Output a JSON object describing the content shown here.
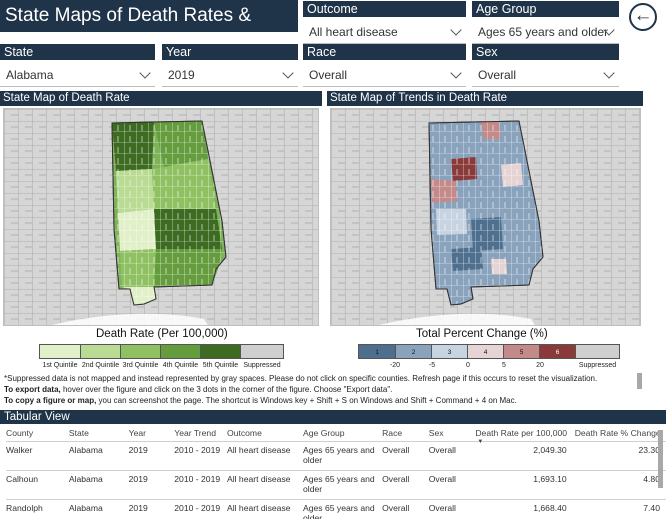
{
  "header": {
    "title": "State Maps of Death Rates & Trends"
  },
  "filters": {
    "outcome": {
      "label": "Outcome",
      "value": "All heart disease"
    },
    "age_group": {
      "label": "Age Group",
      "value": "Ages 65 years and older"
    },
    "state": {
      "label": "State",
      "value": "Alabama"
    },
    "year": {
      "label": "Year",
      "value": "2019"
    },
    "race": {
      "label": "Race",
      "value": "Overall"
    },
    "sex": {
      "label": "Sex",
      "value": "Overall"
    }
  },
  "back_button": {
    "icon": "arrow-left-circle-icon"
  },
  "death_rate_map": {
    "title": "State Map of Death Rate",
    "legend_title": "Death Rate (Per 100,000)",
    "legend": [
      {
        "label": "1st Quintile",
        "color": "#e2f0c9"
      },
      {
        "label": "2nd Quintile",
        "color": "#b9db93"
      },
      {
        "label": "3rd Quintile",
        "color": "#8fc163"
      },
      {
        "label": "4th Quintile",
        "color": "#659c3e"
      },
      {
        "label": "5th Quintile",
        "color": "#3d6b22"
      },
      {
        "label": "Suppressed",
        "color": "#cfcfcf"
      }
    ]
  },
  "trend_map": {
    "title": "State Map of Trends in Death Rate",
    "legend_title": "Total Percent Change (%)",
    "legend": [
      {
        "label": "1",
        "color": "#4f6f8f"
      },
      {
        "label": "2",
        "color": "#8aa3bd"
      },
      {
        "label": "3",
        "color": "#c7d3e0"
      },
      {
        "label": "4",
        "color": "#e6d3d3"
      },
      {
        "label": "5",
        "color": "#c48a8a"
      },
      {
        "label": "6",
        "color": "#8b3a3a"
      },
      {
        "label": "",
        "color": "#cfcfcf"
      }
    ],
    "ticks": [
      "-20",
      "-5",
      "0",
      "5",
      "20",
      "Suppressed"
    ]
  },
  "notes": {
    "suppressed": "*Suppressed data is not mapped and instead represented by gray spaces. Please do not click on specific counties. Refresh page if this occurs to reset the visualization.",
    "export_bold": "To export data,",
    "export_text": " hover over the figure and click on the 3 dots in the corner of the figure. Choose \"Export data\".",
    "copy_bold": "To copy a figure or map,",
    "copy_text": " you can screenshot the page. The shortcut is Windows key + Shift + S on Windows and Shift + Command + 4 on Mac."
  },
  "table": {
    "title": "Tabular View",
    "columns": [
      "County",
      "State",
      "Year",
      "Year Trend",
      "Outcome",
      "Age Group",
      "Race",
      "Sex",
      "Death Rate per 100,000",
      "Death Rate % Change"
    ],
    "rows": [
      [
        "Walker",
        "Alabama",
        "2019",
        "2010 - 2019",
        "All heart disease",
        "Ages 65 years and older",
        "Overall",
        "Overall",
        "2,049.30",
        "23.30"
      ],
      [
        "Calhoun",
        "Alabama",
        "2019",
        "2010 - 2019",
        "All heart disease",
        "Ages 65 years and older",
        "Overall",
        "Overall",
        "1,693.10",
        "4.80"
      ],
      [
        "Randolph",
        "Alabama",
        "2019",
        "2010 - 2019",
        "All heart disease",
        "Ages 65 years and older",
        "Overall",
        "Overall",
        "1,668.40",
        "7.40"
      ]
    ]
  }
}
